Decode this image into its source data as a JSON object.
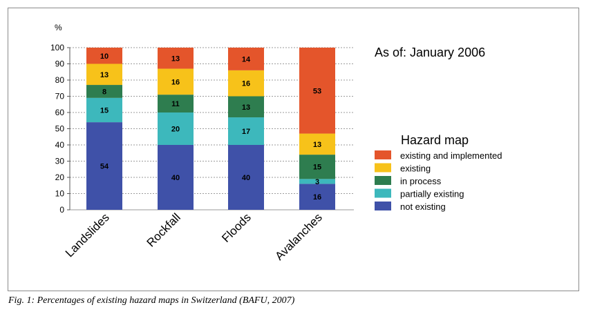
{
  "note": "As of: January 2006",
  "caption": "Fig. 1: Percentages of existing hazard maps in Switzerland (BAFU, 2007)",
  "chart_data": {
    "type": "bar",
    "stacked": true,
    "ylabel": "%",
    "ylim": [
      0,
      100
    ],
    "yticks": [
      0,
      10,
      20,
      30,
      40,
      50,
      60,
      70,
      80,
      90,
      100
    ],
    "grid": true,
    "legend_title": "Hazard map",
    "legend_position": "right",
    "categories": [
      "Landslides",
      "Rockfall",
      "Floods",
      "Avalanches"
    ],
    "series": [
      {
        "name": "not existing",
        "color": "#3f51a8",
        "values": [
          54,
          40,
          40,
          16
        ]
      },
      {
        "name": "partially existing",
        "color": "#3db8bc",
        "values": [
          15,
          20,
          17,
          3
        ]
      },
      {
        "name": "in process",
        "color": "#2e7d4f",
        "values": [
          8,
          11,
          13,
          15
        ]
      },
      {
        "name": "existing",
        "color": "#f7c21a",
        "values": [
          13,
          16,
          16,
          13
        ]
      },
      {
        "name": "existing and implemented",
        "color": "#e4552b",
        "values": [
          10,
          13,
          14,
          53
        ]
      }
    ]
  }
}
